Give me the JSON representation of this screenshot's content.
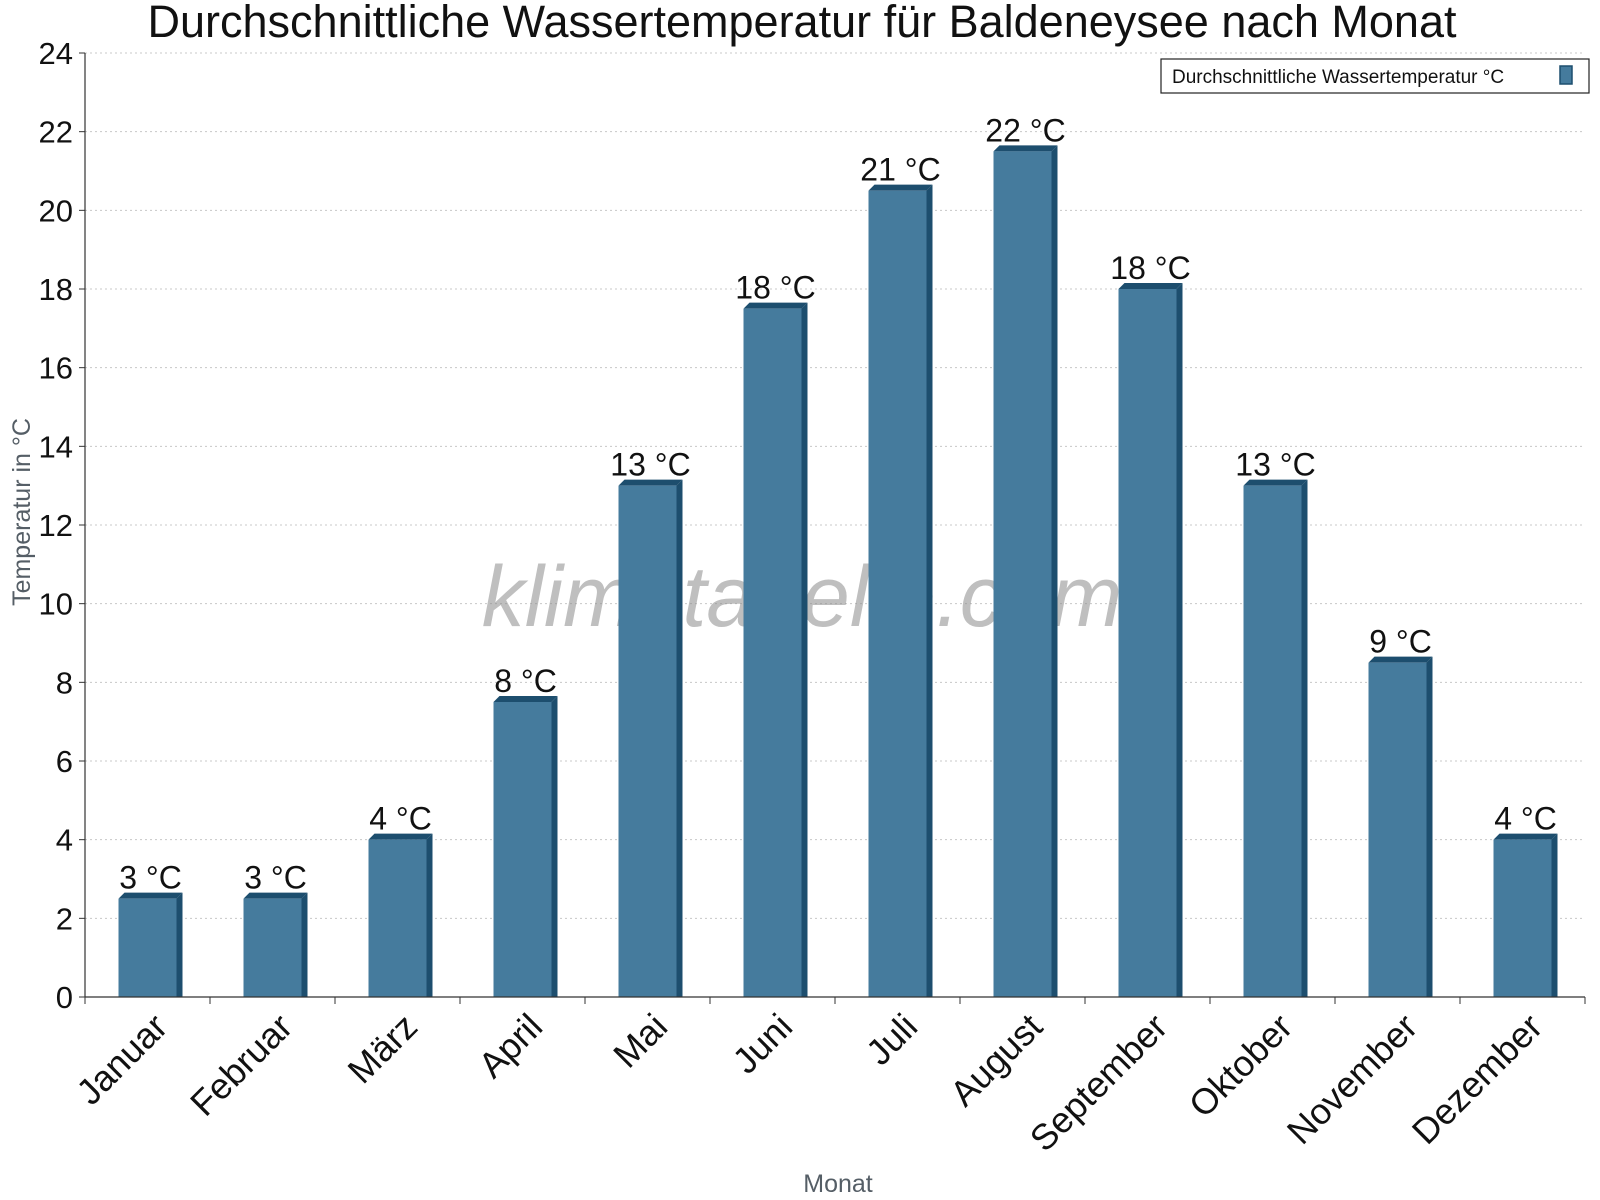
{
  "chart_data": {
    "type": "bar",
    "title": "Durchschnittliche Wassertemperatur für Baldeneysee nach Monat",
    "xlabel": "Monat",
    "ylabel": "Temperatur in °C",
    "categories": [
      "Januar",
      "Februar",
      "März",
      "April",
      "Mai",
      "Juni",
      "Juli",
      "August",
      "September",
      "Oktober",
      "November",
      "Dezember"
    ],
    "series": [
      {
        "name": "Durchschnittliche Wassertemperatur °C",
        "values": [
          2.5,
          2.5,
          4,
          7.5,
          13,
          17.5,
          20.5,
          21.5,
          18,
          13,
          8.5,
          4
        ],
        "labels": [
          "3 °C",
          "3 °C",
          "4 °C",
          "8 °C",
          "13 °C",
          "18 °C",
          "21 °C",
          "22 °C",
          "18 °C",
          "13 °C",
          "9 °C",
          "4 °C"
        ],
        "color": "#457b9d",
        "edge_color": "#1d4e6e"
      }
    ],
    "ylim": [
      0,
      24
    ],
    "yticks": [
      0,
      2,
      4,
      6,
      8,
      10,
      12,
      14,
      16,
      18,
      20,
      22,
      24
    ],
    "grid": true,
    "legend_position": "top-right",
    "watermark": "klimatabelle.com"
  }
}
